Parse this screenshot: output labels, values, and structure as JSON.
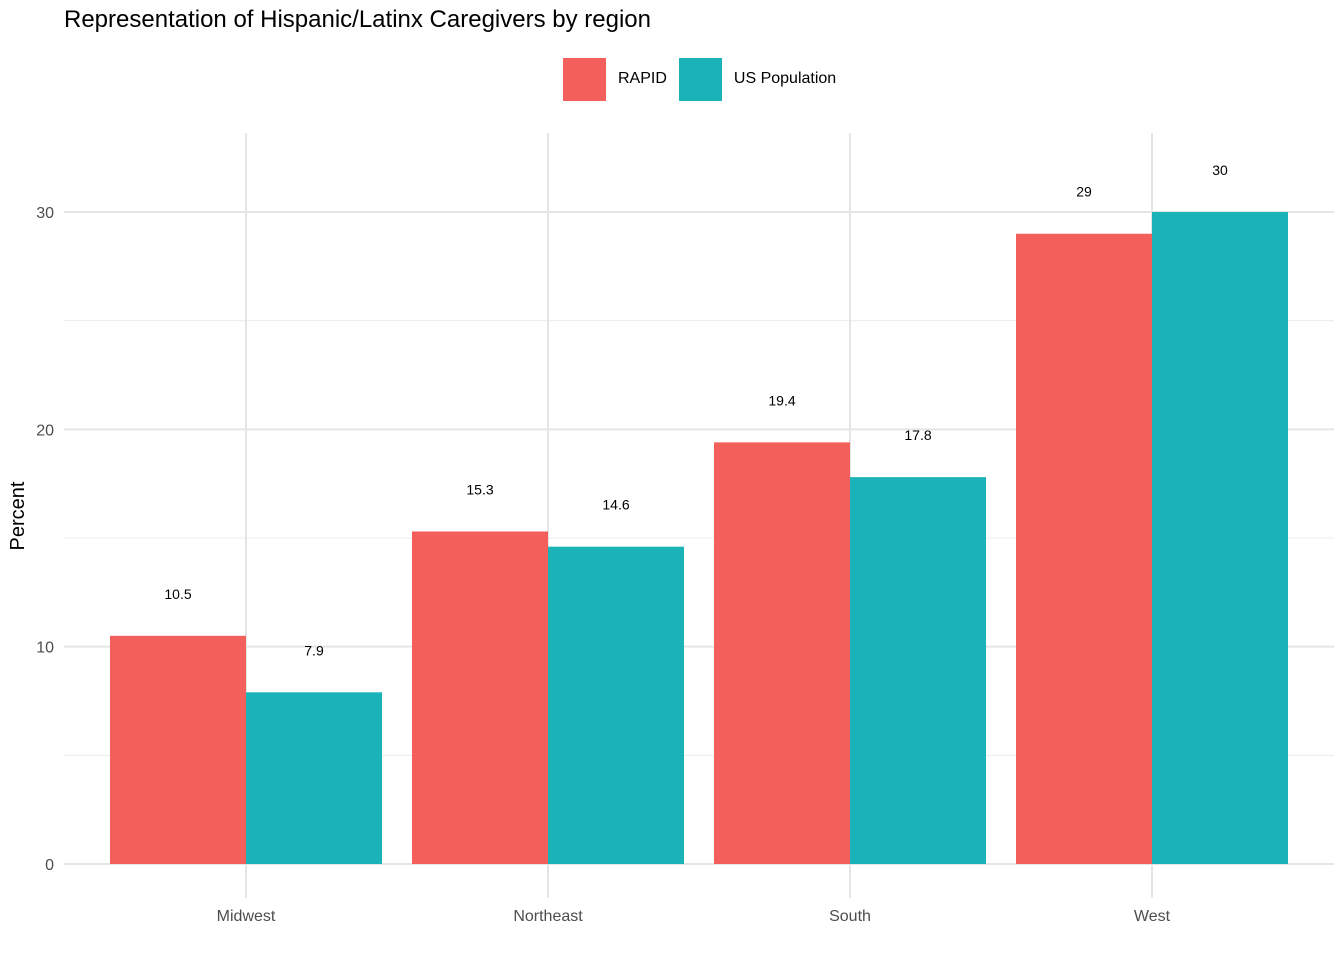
{
  "chart_data": {
    "type": "bar",
    "title": "Representation of Hispanic/Latinx Caregivers by region",
    "xlabel": "",
    "ylabel": "Percent",
    "categories": [
      "Midwest",
      "Northeast",
      "South",
      "West"
    ],
    "series": [
      {
        "name": "RAPID",
        "color": "#F3605C",
        "values": [
          10.5,
          15.3,
          19.4,
          29
        ],
        "labels": [
          "10.5",
          "15.3",
          "19.4",
          "29"
        ]
      },
      {
        "name": "US Population",
        "color": "#1AB4B8",
        "values": [
          7.9,
          14.6,
          17.8,
          30
        ],
        "labels": [
          "7.9",
          "14.6",
          "17.8",
          "30"
        ]
      }
    ],
    "ylim": [
      0,
      33.5
    ],
    "yticks": [
      0,
      10,
      20,
      30
    ],
    "ytick_labels": [
      "0",
      "10",
      "20",
      "30"
    ],
    "grid": true,
    "legend_position": "top"
  }
}
